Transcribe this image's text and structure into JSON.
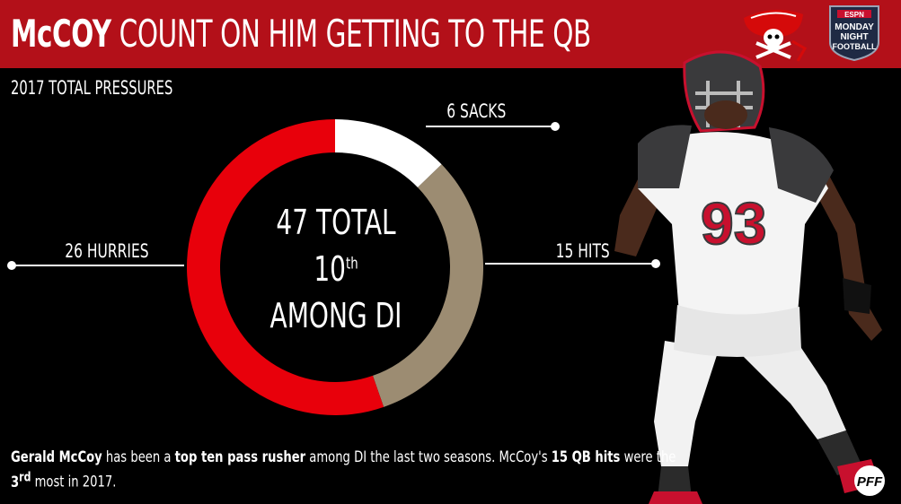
{
  "header": {
    "title_strong": "McCOY",
    "title_rest": "COUNT ON HIM GETTING TO THE QB",
    "team_logo": "buccaneers-logo",
    "broadcast_logo": "monday-night-football-logo",
    "broadcast_text": [
      "ESPN",
      "MONDAY",
      "NIGHT",
      "FOOTBALL"
    ]
  },
  "subtitle": "2017 TOTAL PRESSURES",
  "chart_data": {
    "type": "pie",
    "style": "donut",
    "title": "2017 TOTAL PRESSURES",
    "categories": [
      "SACKS",
      "HITS",
      "HURRIES"
    ],
    "values": [
      6,
      15,
      26
    ],
    "labels": [
      "6 SACKS",
      "15 HITS",
      "26 HURRIES"
    ],
    "colors": [
      "#ffffff",
      "#9c8c72",
      "#e8000b"
    ],
    "total": 47,
    "center_text": {
      "line1": "47 TOTAL",
      "rank_num": "10",
      "rank_suffix": "th",
      "line3": "AMONG DI"
    }
  },
  "caption": {
    "p1": "Gerald McCoy",
    "p2": " has been a ",
    "p3": "top ten pass rusher",
    "p4": " among DI the last two seasons. McCoy's ",
    "p5": "15 QB hits",
    "p6": " were the ",
    "p7_num": "3",
    "p7_sup": "rd",
    "p8": " most in 2017."
  },
  "footer_logo": "PFF",
  "colors": {
    "header_red": "#b31019",
    "background": "#000000",
    "jersey_red": "#c8102e",
    "pewter": "#3a3a3c"
  }
}
